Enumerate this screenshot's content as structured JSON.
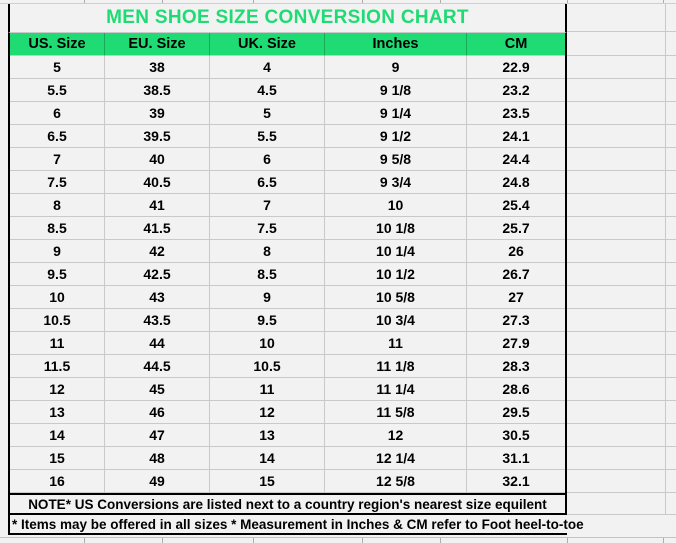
{
  "colors": {
    "accent_green": "#1EDC73",
    "cell_background": "#F2F2F2",
    "gridline": "#C9C9C9",
    "border_black": "#000000",
    "text": "#000000"
  },
  "chart_data": {
    "type": "table",
    "title": "MEN SHOE SIZE CONVERSION CHART",
    "columns": [
      "US. Size",
      "EU. Size",
      "UK. Size",
      "Inches",
      "CM"
    ],
    "rows": [
      [
        "5",
        "38",
        "4",
        "9",
        "22.9"
      ],
      [
        "5.5",
        "38.5",
        "4.5",
        "9 1/8",
        "23.2"
      ],
      [
        "6",
        "39",
        "5",
        "9 1/4",
        "23.5"
      ],
      [
        "6.5",
        "39.5",
        "5.5",
        "9 1/2",
        "24.1"
      ],
      [
        "7",
        "40",
        "6",
        "9 5/8",
        "24.4"
      ],
      [
        "7.5",
        "40.5",
        "6.5",
        "9 3/4",
        "24.8"
      ],
      [
        "8",
        "41",
        "7",
        "10",
        "25.4"
      ],
      [
        "8.5",
        "41.5",
        "7.5",
        "10 1/8",
        "25.7"
      ],
      [
        "9",
        "42",
        "8",
        "10 1/4",
        "26"
      ],
      [
        "9.5",
        "42.5",
        "8.5",
        "10 1/2",
        "26.7"
      ],
      [
        "10",
        "43",
        "9",
        "10 5/8",
        "27"
      ],
      [
        "10.5",
        "43.5",
        "9.5",
        "10 3/4",
        "27.3"
      ],
      [
        "11",
        "44",
        "10",
        "11",
        "27.9"
      ],
      [
        "11.5",
        "44.5",
        "10.5",
        "11 1/8",
        "28.3"
      ],
      [
        "12",
        "45",
        "11",
        "11 1/4",
        "28.6"
      ],
      [
        "13",
        "46",
        "12",
        "11 5/8",
        "29.5"
      ],
      [
        "14",
        "47",
        "13",
        "12",
        "30.5"
      ],
      [
        "15",
        "48",
        "14",
        "12 1/4",
        "31.1"
      ],
      [
        "16",
        "49",
        "15",
        "12 5/8",
        "32.1"
      ]
    ],
    "notes": [
      "NOTE* US Conversions are listed next to a country region's nearest size equilent",
      "* Items may be offered in all sizes * Measurement in Inches & CM refer to Foot heel-to-toe"
    ],
    "layout_hints": {
      "header_style": "green background, black bold text",
      "title_style": "green bold text on light gray",
      "grid": "on"
    }
  }
}
